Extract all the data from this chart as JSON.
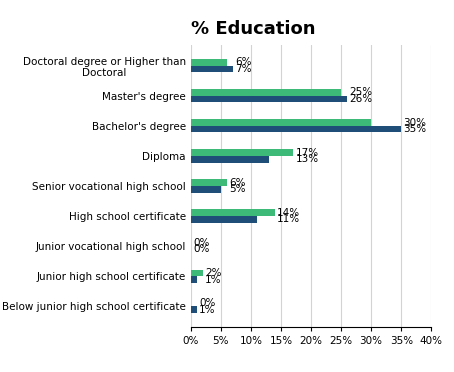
{
  "title": "% Education",
  "categories": [
    "Below junior high school certificate",
    "Junior high school certificate",
    "Junior vocational high school",
    "High school certificate",
    "Senior vocational high school",
    "Diploma",
    "Bachelor's degree",
    "Master's degree",
    "Doctoral degree or Higher than\nDoctoral"
  ],
  "green_values": [
    0,
    2,
    0,
    14,
    6,
    17,
    30,
    25,
    6
  ],
  "blue_values": [
    1,
    1,
    0,
    11,
    5,
    13,
    35,
    26,
    7
  ],
  "green_labels": [
    "0%",
    "2%",
    "0%",
    "14%",
    "6%",
    "17%",
    "30%",
    "25%",
    "6%"
  ],
  "blue_labels": [
    "1%",
    "1%",
    "0%",
    "11%",
    "5%",
    "13%",
    "35%",
    "26%",
    "7%"
  ],
  "green_color": "#3dba78",
  "blue_color": "#1f4e79",
  "xlim": [
    0,
    40
  ],
  "xticks": [
    0,
    5,
    10,
    15,
    20,
    25,
    30,
    35,
    40
  ],
  "xtick_labels": [
    "0%",
    "5%",
    "10%",
    "15%",
    "20%",
    "25%",
    "30%",
    "35%",
    "40%"
  ],
  "title_fontsize": 13,
  "tick_fontsize": 7.5,
  "label_fontsize": 7.5,
  "bar_height": 0.22
}
